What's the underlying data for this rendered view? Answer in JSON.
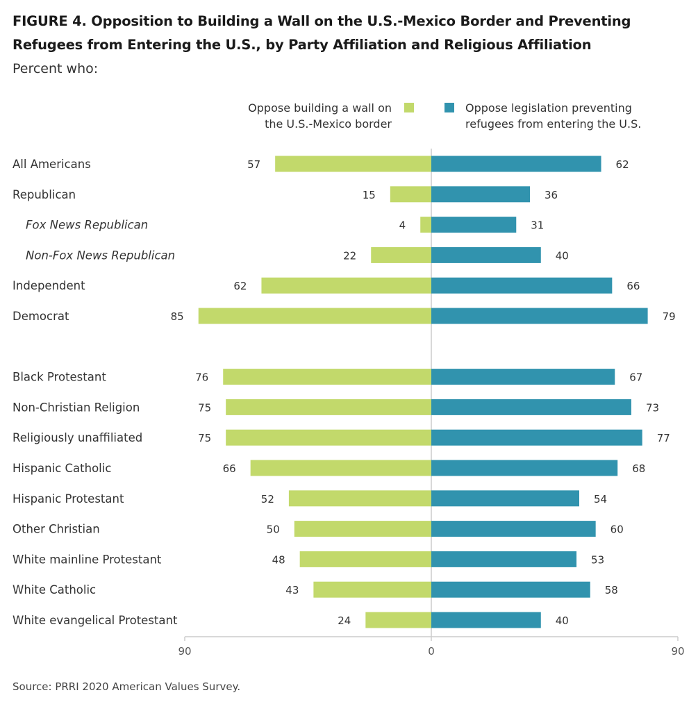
{
  "figure": {
    "title": "FIGURE 4.  Opposition to Building a Wall on the U.S.-Mexico Border and Preventing Refugees from Entering the U.S., by Party Affiliation and Religious Affiliation",
    "subtitle": "Percent who:",
    "source": "Source: PRRI 2020 American Values Survey."
  },
  "legend": {
    "left": {
      "line1": "Oppose building a wall on",
      "line2": "the U.S.-Mexico border",
      "color": "#c2d96b"
    },
    "right": {
      "line1": "Oppose legislation preventing",
      "line2": "refugees from entering the U.S.",
      "color": "#3193ae"
    }
  },
  "chart_data": {
    "type": "bar",
    "orientation": "diverging-horizontal",
    "categories": [
      "All Americans",
      "Republican",
      "Fox News Republican",
      "Non-Fox News Republican",
      "Independent",
      "Democrat",
      "Black Protestant",
      "Non-Christian Religion",
      "Religiously unaffiliated",
      "Hispanic Catholic",
      "Hispanic Protestant",
      "Other Christian",
      "White mainline Protestant",
      "White Catholic",
      "White evangelical Protestant"
    ],
    "italic_categories": [
      "Fox News Republican",
      "Non-Fox News Republican"
    ],
    "groups": [
      [
        "All Americans",
        "Republican",
        "Fox News Republican",
        "Non-Fox News Republican",
        "Independent",
        "Democrat"
      ],
      [
        "Black Protestant",
        "Non-Christian Religion",
        "Religiously unaffiliated",
        "Hispanic Catholic",
        "Hispanic Protestant",
        "Other Christian",
        "White mainline Protestant",
        "White Catholic",
        "White evangelical Protestant"
      ]
    ],
    "series": [
      {
        "name": "Oppose building a wall on the U.S.-Mexico border",
        "side": "left",
        "color": "#c2d96b",
        "values": [
          57,
          15,
          4,
          22,
          62,
          85,
          76,
          75,
          75,
          66,
          52,
          50,
          48,
          43,
          24
        ]
      },
      {
        "name": "Oppose legislation preventing refugees from entering the U.S.",
        "side": "right",
        "color": "#3193ae",
        "values": [
          62,
          36,
          31,
          40,
          66,
          79,
          67,
          73,
          77,
          68,
          54,
          60,
          53,
          58,
          40
        ]
      }
    ],
    "xlim": [
      0,
      90
    ],
    "ticks": [
      "90",
      "0",
      "90"
    ],
    "grid": false
  }
}
